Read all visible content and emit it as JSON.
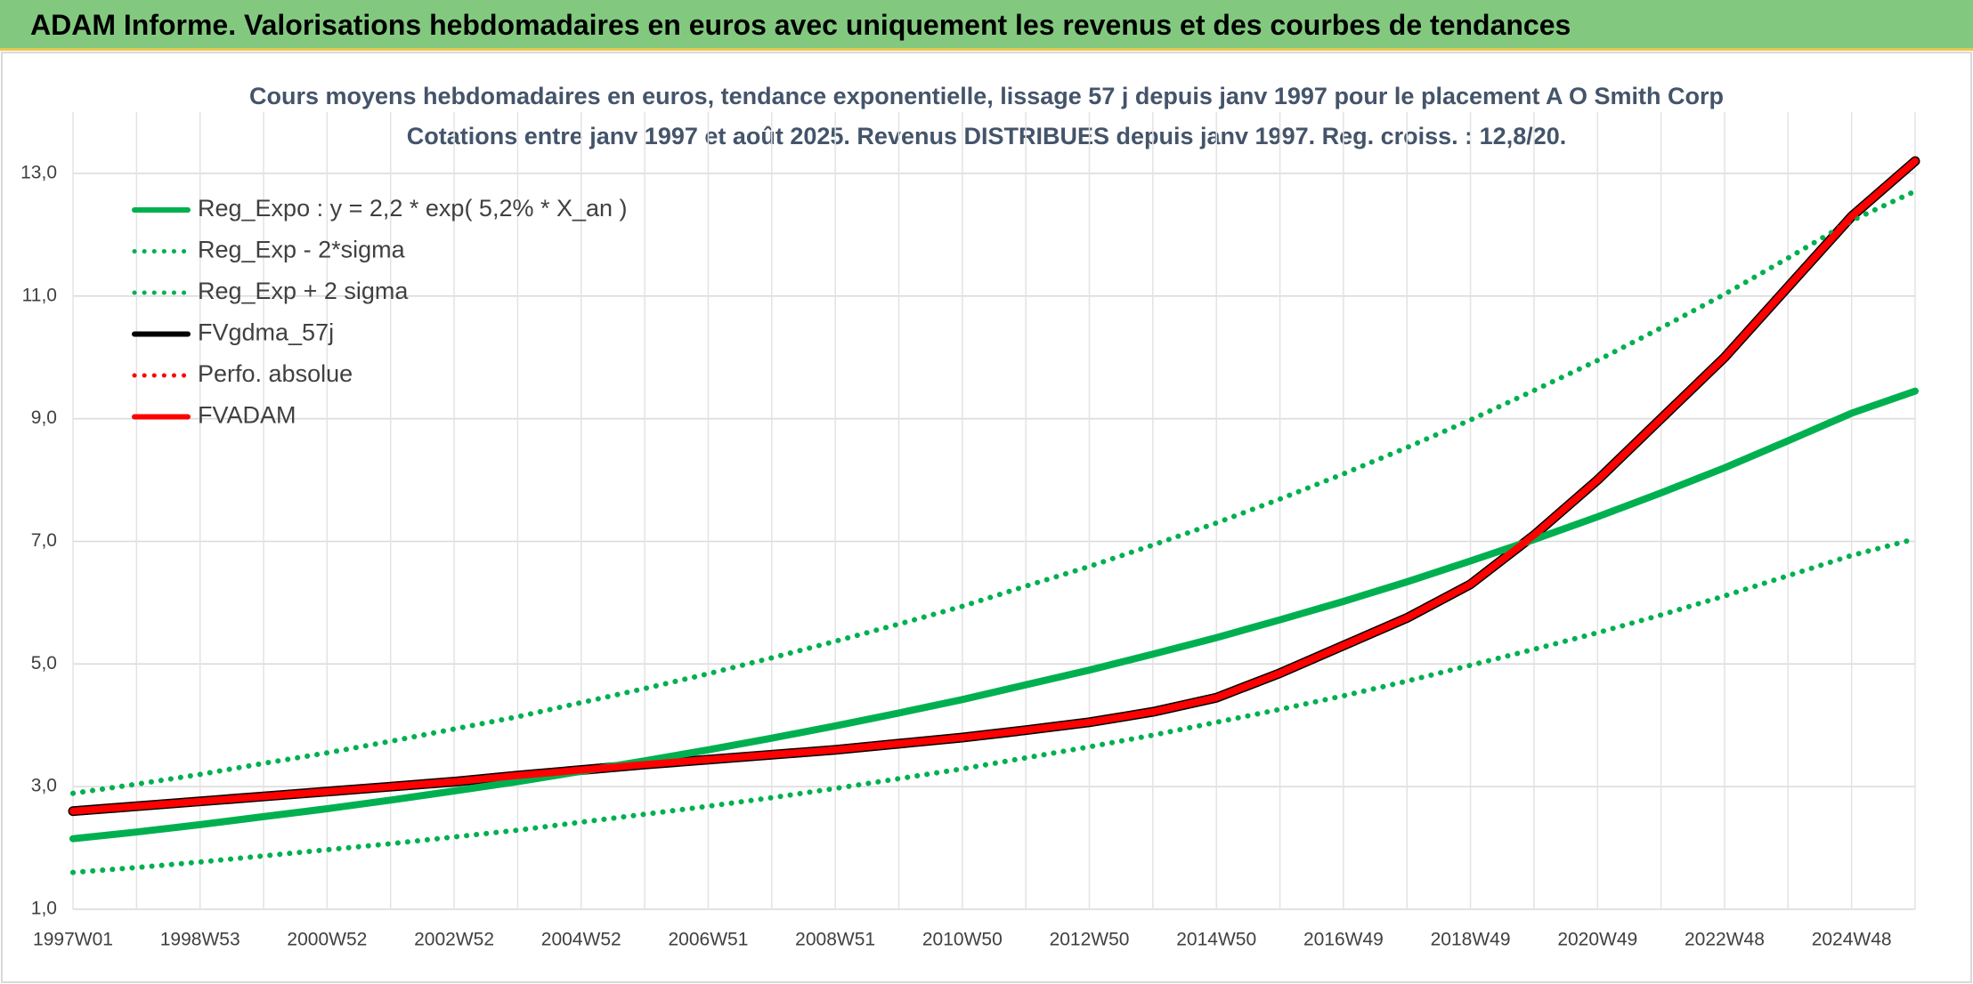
{
  "header": {
    "title": "ADAM Informe. Valorisations hebdomadaires en euros avec uniquement les revenus et des courbes de tendances"
  },
  "chart_data": {
    "type": "line",
    "title": "Cours moyens hebdomadaires en euros, tendance exponentielle, lissage 57 j depuis janv 1997 pour le placement A O Smith Corp",
    "subtitle": "Cotations entre janv 1997 et août 2025. Revenus DISTRIBUES depuis janv 1997. Reg. croiss. : 12,8/20.",
    "categories": [
      "1997W01",
      null,
      "1998W53",
      null,
      "2000W52",
      null,
      "2002W52",
      null,
      "2004W52",
      null,
      "2006W51",
      null,
      "2008W51",
      null,
      "2010W50",
      null,
      "2012W50",
      null,
      "2014W50",
      null,
      "2016W49",
      null,
      "2018W49",
      null,
      "2020W49",
      null,
      "2022W48",
      null,
      "2024W48",
      null
    ],
    "ylim": [
      1,
      14
    ],
    "yticks": [
      {
        "value": 1,
        "label": "1,0"
      },
      {
        "value": 3,
        "label": "3,0"
      },
      {
        "value": 5,
        "label": "5,0"
      },
      {
        "value": 7,
        "label": "7,0"
      },
      {
        "value": 9,
        "label": "9,0"
      },
      {
        "value": 11,
        "label": "11,0"
      },
      {
        "value": 13,
        "label": "13,0"
      }
    ],
    "grid": true,
    "legend": "top-left",
    "series": [
      {
        "name": "Reg_Expo : y = 2,2 * exp( 5,2% *  X_an )",
        "color": "#00b050",
        "line_style": "solid",
        "values": [
          2.15,
          2.26,
          2.38,
          2.51,
          2.64,
          2.78,
          2.93,
          3.08,
          3.25,
          3.42,
          3.6,
          3.79,
          3.99,
          4.2,
          4.42,
          4.66,
          4.9,
          5.16,
          5.43,
          5.72,
          6.02,
          6.34,
          6.68,
          7.03,
          7.4,
          7.79,
          8.2,
          8.64,
          9.09,
          9.45
        ]
      },
      {
        "name": "Reg_Exp - 2*sigma",
        "color": "#00b050",
        "line_style": "dotted",
        "values": [
          1.6,
          1.68,
          1.77,
          1.87,
          1.97,
          2.07,
          2.18,
          2.29,
          2.42,
          2.55,
          2.68,
          2.82,
          2.97,
          3.13,
          3.29,
          3.47,
          3.65,
          3.84,
          4.05,
          4.26,
          4.48,
          4.72,
          4.98,
          5.24,
          5.51,
          5.8,
          6.11,
          6.44,
          6.77,
          7.04
        ]
      },
      {
        "name": "Reg_Exp + 2 sigma",
        "color": "#00b050",
        "line_style": "dotted",
        "values": [
          2.89,
          3.04,
          3.2,
          3.38,
          3.55,
          3.74,
          3.94,
          4.14,
          4.37,
          4.6,
          4.84,
          5.1,
          5.37,
          5.65,
          5.94,
          6.27,
          6.59,
          6.94,
          7.3,
          7.69,
          8.1,
          8.53,
          8.98,
          9.46,
          9.95,
          10.48,
          11.03,
          11.62,
          12.23,
          12.71
        ]
      },
      {
        "name": "FVgdma_57j",
        "color": "#000000",
        "line_style": "solid",
        "values": [
          2.6,
          2.68,
          2.76,
          2.84,
          2.92,
          3.0,
          3.08,
          3.18,
          3.27,
          3.36,
          3.44,
          3.52,
          3.6,
          3.7,
          3.8,
          3.92,
          4.05,
          4.22,
          4.45,
          4.85,
          5.3,
          5.75,
          6.3,
          7.1,
          8.0,
          9.0,
          10.0,
          11.15,
          12.3,
          13.2
        ]
      },
      {
        "name": "Perfo. absolue",
        "color": "#ff0000",
        "line_style": "dotted",
        "values": [
          2.6,
          2.68,
          2.76,
          2.84,
          2.92,
          3.0,
          3.08,
          3.18,
          3.27,
          3.36,
          3.44,
          3.52,
          3.6,
          3.7,
          3.8,
          3.92,
          4.05,
          4.22,
          4.45,
          4.85,
          5.3,
          5.75,
          6.3,
          7.1,
          8.0,
          9.0,
          10.0,
          11.15,
          12.3,
          13.2
        ]
      },
      {
        "name": "FVADAM",
        "color": "#ff0000",
        "line_style": "solid",
        "values": [
          2.6,
          2.68,
          2.76,
          2.84,
          2.92,
          3.0,
          3.08,
          3.18,
          3.27,
          3.36,
          3.44,
          3.52,
          3.6,
          3.7,
          3.8,
          3.92,
          4.05,
          4.22,
          4.45,
          4.85,
          5.3,
          5.75,
          6.3,
          7.1,
          8.0,
          9.0,
          10.0,
          11.15,
          12.3,
          13.2
        ]
      }
    ]
  }
}
